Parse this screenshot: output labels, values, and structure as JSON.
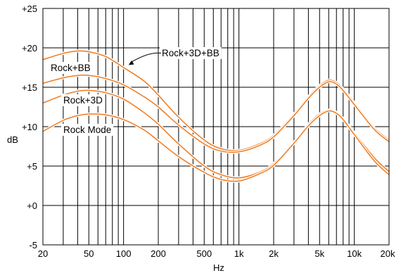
{
  "chart_data": {
    "type": "line",
    "title": "",
    "xlabel": "Hz",
    "ylabel": "dB",
    "x_scale": "log",
    "xlim": [
      20,
      20000
    ],
    "ylim": [
      -5,
      25
    ],
    "grid": true,
    "x_ticks": [
      {
        "value": 20,
        "label": "20"
      },
      {
        "value": 50,
        "label": "50"
      },
      {
        "value": 100,
        "label": "100"
      },
      {
        "value": 200,
        "label": "200"
      },
      {
        "value": 500,
        "label": "500"
      },
      {
        "value": 1000,
        "label": "1k"
      },
      {
        "value": 2000,
        "label": "2k"
      },
      {
        "value": 5000,
        "label": "5k"
      },
      {
        "value": 10000,
        "label": "10k"
      },
      {
        "value": 20000,
        "label": "20k"
      }
    ],
    "y_ticks": [
      {
        "value": 25,
        "label": "+25"
      },
      {
        "value": 20,
        "label": "+20"
      },
      {
        "value": 15,
        "label": "+15"
      },
      {
        "value": 10,
        "label": "+10"
      },
      {
        "value": 5,
        "label": "+5"
      },
      {
        "value": 0,
        "label": "+0"
      },
      {
        "value": -5,
        "label": "-5"
      }
    ],
    "line_color": "#f07a1e",
    "series": [
      {
        "name": "Rock+3D+BB",
        "x": [
          20,
          30,
          40,
          50,
          70,
          100,
          150,
          200,
          300,
          500,
          700,
          1000,
          1500,
          2000,
          3000,
          4000,
          5000,
          6000,
          7000,
          8000,
          10000,
          15000,
          20000
        ],
        "y": [
          18.5,
          19.3,
          19.6,
          19.5,
          18.9,
          17.5,
          15.8,
          14.0,
          11.2,
          8.3,
          7.2,
          7.0,
          7.8,
          8.9,
          11.6,
          13.8,
          15.2,
          15.9,
          15.6,
          14.8,
          13.0,
          9.8,
          8.3
        ]
      },
      {
        "name": "Rock+BB",
        "x": [
          20,
          30,
          40,
          50,
          70,
          100,
          150,
          200,
          300,
          500,
          700,
          1000,
          1500,
          2000,
          3000,
          4000,
          5000,
          6000,
          7000,
          8000,
          10000,
          15000,
          20000
        ],
        "y": [
          15.5,
          16.2,
          16.5,
          16.5,
          16.1,
          15.3,
          13.8,
          12.5,
          10.2,
          7.8,
          6.9,
          6.8,
          7.6,
          8.7,
          11.4,
          13.6,
          15.0,
          15.7,
          15.4,
          14.6,
          12.8,
          9.6,
          8.1
        ]
      },
      {
        "name": "Rock+3D",
        "x": [
          20,
          30,
          40,
          50,
          70,
          100,
          150,
          200,
          300,
          500,
          700,
          1000,
          1500,
          2000,
          3000,
          4000,
          5000,
          6000,
          7000,
          8000,
          10000,
          15000,
          20000
        ],
        "y": [
          13.0,
          14.0,
          14.5,
          14.6,
          14.3,
          13.5,
          11.8,
          10.3,
          7.8,
          5.0,
          3.9,
          3.5,
          4.2,
          5.3,
          8.0,
          10.3,
          11.6,
          12.1,
          11.8,
          11.0,
          9.2,
          6.0,
          4.3
        ]
      },
      {
        "name": "Rock Mode",
        "x": [
          20,
          30,
          40,
          50,
          70,
          100,
          150,
          200,
          300,
          500,
          700,
          1000,
          1500,
          2000,
          3000,
          4000,
          5000,
          6000,
          7000,
          8000,
          10000,
          15000,
          20000
        ],
        "y": [
          9.4,
          10.8,
          11.4,
          11.6,
          11.5,
          10.9,
          9.6,
          8.2,
          6.2,
          4.2,
          3.3,
          3.1,
          4.0,
          5.1,
          7.9,
          10.1,
          11.4,
          12.0,
          11.7,
          10.9,
          9.0,
          5.6,
          3.9
        ]
      }
    ],
    "annotations": [
      {
        "text": "Rock+3D+BB",
        "arrow_to": {
          "x": 110,
          "y": 17.8
        }
      },
      {
        "text": "Rock+BB"
      },
      {
        "text": "Rock+3D"
      },
      {
        "text": "Rock Mode"
      }
    ]
  }
}
